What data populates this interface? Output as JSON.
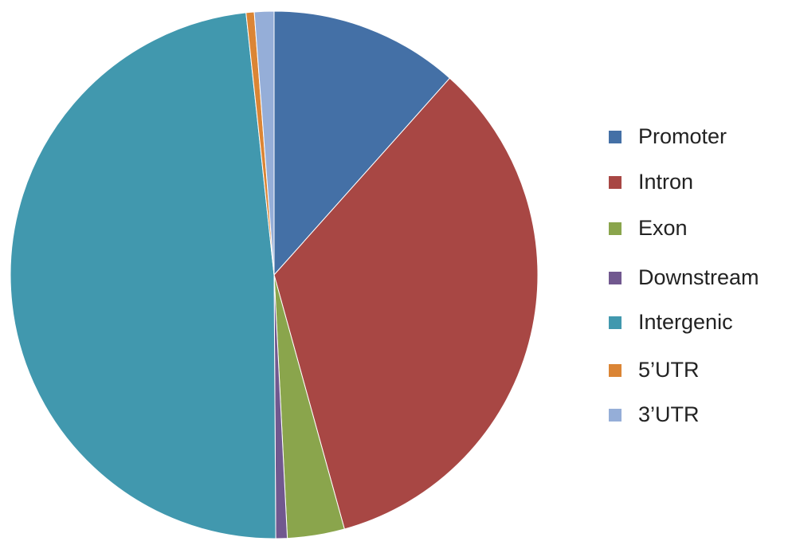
{
  "chart_data": {
    "type": "pie",
    "categories": [
      "Promoter",
      "Intron",
      "Exon",
      "Downstream",
      "Intergenic",
      "5’UTR",
      "3’UTR"
    ],
    "values": [
      11.6,
      34.1,
      3.5,
      0.7,
      48.4,
      0.5,
      1.2
    ],
    "colors": [
      "#4470a6",
      "#a84744",
      "#8aa54c",
      "#71588f",
      "#4198ae",
      "#db8535",
      "#95aed8"
    ],
    "legend": "right"
  }
}
